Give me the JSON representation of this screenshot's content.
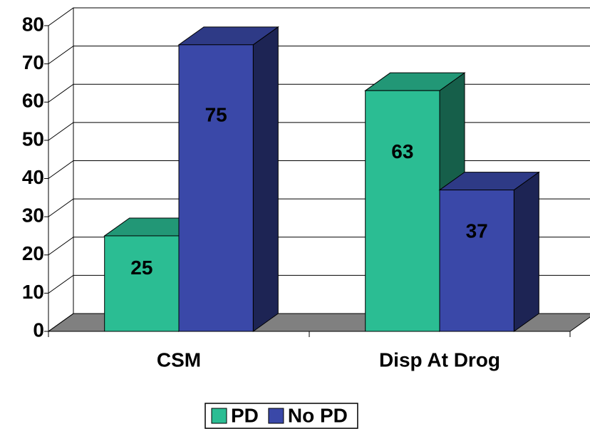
{
  "chart_data": {
    "type": "bar",
    "categories": [
      "CSM",
      "Disp At Drog"
    ],
    "series": [
      {
        "name": "PD",
        "color": "#2bbd93",
        "values": [
          25,
          63
        ]
      },
      {
        "name": "No PD",
        "color": "#3a48a8",
        "values": [
          75,
          37
        ]
      }
    ],
    "ylim": [
      0,
      80
    ],
    "yticks": [
      0,
      10,
      20,
      30,
      40,
      50,
      60,
      70,
      80
    ],
    "grid": true,
    "legend": "bottom"
  }
}
